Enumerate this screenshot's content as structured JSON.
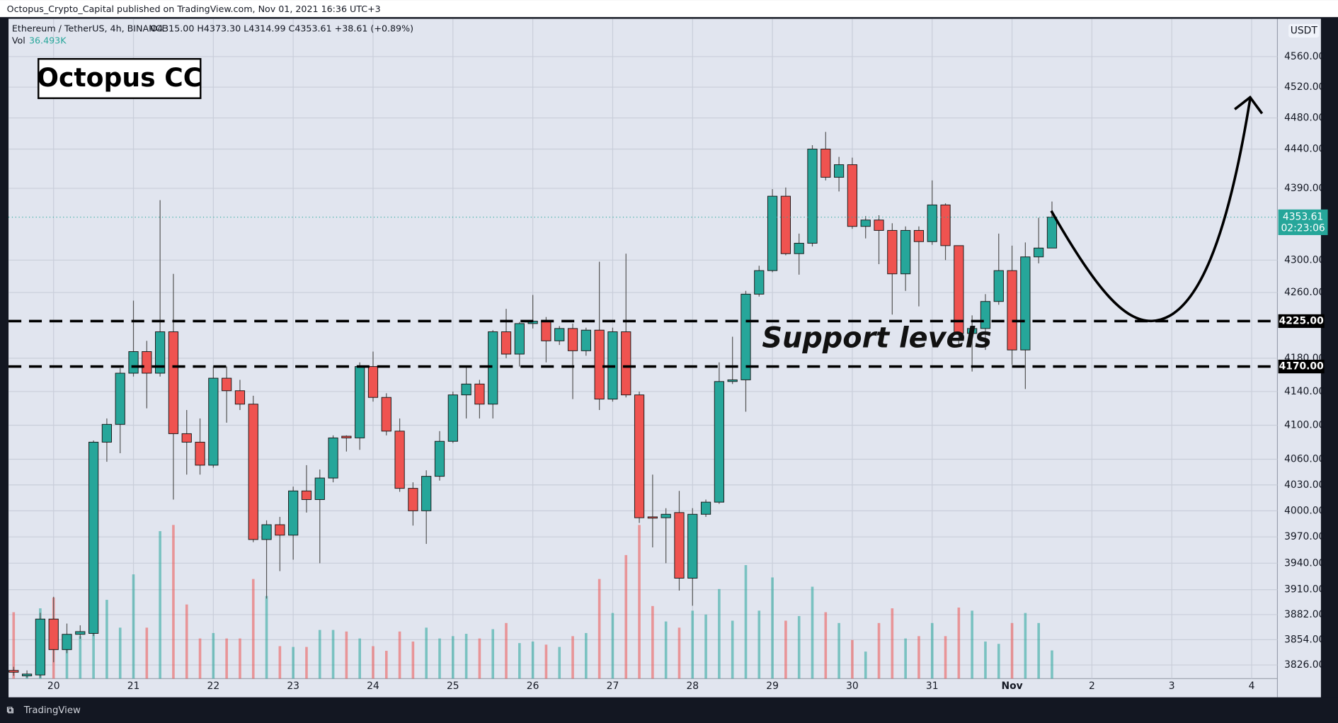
{
  "chart_data": {
    "type": "candlestick",
    "header": "Octopus_Crypto_Capital published on TradingView.com, Nov 01, 2021 16:36 UTC+3",
    "symbol": "Ethereum / TetherUS, 4h, BINANCE",
    "legend_values": "O4315.00 H4373.30 L4314.99 C4353.61 +38.61 (+0.89%)",
    "volume_name": "Vol",
    "volume_value_label": "36.493K",
    "currency": "USDT",
    "footer": "TradingView",
    "annotations": {
      "brand": "Octopus CC",
      "support": "Support levels"
    },
    "categories": [
      null,
      null,
      null,
      "20",
      null,
      null,
      null,
      null,
      null,
      "21",
      null,
      null,
      null,
      null,
      null,
      "22",
      null,
      null,
      null,
      null,
      null,
      "23",
      null,
      null,
      null,
      null,
      null,
      "24",
      null,
      null,
      null,
      null,
      null,
      "25",
      null,
      null,
      null,
      null,
      null,
      "26",
      null,
      null,
      null,
      null,
      null,
      "27",
      null,
      null,
      null,
      null,
      null,
      "28",
      null,
      null,
      null,
      null,
      null,
      "29",
      null,
      null,
      null,
      null,
      null,
      "30",
      null,
      null,
      null,
      null,
      null,
      "31",
      null,
      null,
      null,
      null,
      null,
      "Nov",
      null,
      null,
      null,
      null,
      null,
      "2",
      null,
      null,
      null,
      null,
      null,
      "3",
      null,
      null,
      null,
      null,
      null,
      "4",
      null
    ],
    "open": [
      3820,
      3814,
      3815,
      3877,
      3843,
      3860,
      3861,
      4080,
      4101,
      4162,
      4188,
      4162,
      4212,
      4090,
      4080,
      4053,
      4156,
      4141,
      4125,
      3967,
      3984,
      3972,
      4023,
      4013,
      4038,
      4087,
      4085,
      4170,
      4133,
      4093,
      4026,
      4000,
      4040,
      4081,
      4136,
      4149,
      4125,
      4212,
      4185,
      4222,
      4225,
      4201,
      4216,
      4189,
      4214,
      4131,
      4212,
      4136,
      3993,
      3992,
      3998,
      3923,
      3996,
      4010,
      4152,
      4154,
      4258,
      4287,
      4380,
      4308,
      4321,
      4440,
      4404,
      4420,
      4342,
      4350,
      4337,
      4283,
      4337,
      4323,
      4369,
      4318,
      4210,
      4216,
      4249,
      4287,
      4190,
      4304,
      4315.0,
      null,
      null,
      null,
      null,
      null,
      null,
      null,
      null,
      null,
      null,
      null,
      null,
      null,
      null,
      null,
      null
    ],
    "high": [
      3824,
      3820,
      3884,
      3902,
      3872,
      3870,
      4082,
      4108,
      4168,
      4250,
      4201,
      4375,
      4283,
      4118,
      4108,
      4170,
      4170,
      4154,
      4135,
      3989,
      3993,
      4028,
      4053,
      4048,
      4088,
      4088,
      4175,
      4188,
      4138,
      4108,
      4033,
      4047,
      4093,
      4140,
      4170,
      4154,
      4214,
      4240,
      4224,
      4257,
      4230,
      4219,
      4222,
      4217,
      4298,
      4217,
      4308,
      4140,
      4042,
      4003,
      4023,
      4003,
      4013,
      4175,
      4206,
      4262,
      4293,
      4389,
      4391,
      4333,
      4445,
      4462,
      4430,
      4429,
      4355,
      4356,
      4346,
      4342,
      4342,
      4400,
      4371,
      4318,
      4232,
      4258,
      4333,
      4318,
      4322,
      4353,
      4373.3,
      null,
      null,
      null,
      null,
      null,
      null,
      null,
      null,
      null,
      null,
      null,
      null,
      null,
      null,
      null,
      null
    ],
    "low": [
      3814,
      3812,
      3812,
      3829,
      3839,
      3855,
      3858,
      4057,
      4067,
      4158,
      4120,
      4158,
      4013,
      4042,
      4042,
      4050,
      4103,
      4118,
      3964,
      3900,
      3931,
      3944,
      3998,
      3940,
      4033,
      4069,
      4071,
      4128,
      4088,
      4022,
      3983,
      3962,
      4035,
      4079,
      4108,
      4108,
      4108,
      4180,
      4170,
      4216,
      4175,
      4196,
      4131,
      4183,
      4118,
      4128,
      4133,
      3986,
      3958,
      3940,
      3909,
      3892,
      3993,
      4008,
      4149,
      4116,
      4255,
      4285,
      4306,
      4282,
      4317,
      4400,
      4386,
      4339,
      4327,
      4295,
      4233,
      4262,
      4243,
      4319,
      4300,
      4197,
      4164,
      4190,
      4245,
      4172,
      4143,
      4296,
      4314.99,
      null,
      null,
      null,
      null,
      null,
      null,
      null,
      null,
      null,
      null,
      null,
      null,
      null,
      null,
      null,
      null
    ],
    "close": [
      3818,
      3816,
      3877,
      3843,
      3860,
      3863,
      4080,
      4101,
      4162,
      4188,
      4162,
      4212,
      4090,
      4080,
      4053,
      4156,
      4141,
      4125,
      3967,
      3984,
      3972,
      4023,
      4013,
      4038,
      4085,
      4085,
      4170,
      4133,
      4093,
      4026,
      4000,
      4040,
      4081,
      4136,
      4149,
      4125,
      4212,
      4185,
      4222,
      4225,
      4201,
      4216,
      4189,
      4214,
      4131,
      4212,
      4136,
      3992,
      3992,
      3996,
      3923,
      3996,
      4010,
      4152,
      4154,
      4258,
      4287,
      4380,
      4308,
      4321,
      4440,
      4404,
      4420,
      4342,
      4350,
      4337,
      4283,
      4337,
      4323,
      4369,
      4318,
      4210,
      4216,
      4249,
      4287,
      4190,
      4304,
      4315,
      4353.61,
      null,
      null,
      null,
      null,
      null,
      null,
      null,
      null,
      null,
      null,
      null,
      null,
      null,
      null,
      null,
      null
    ],
    "volume": [
      86,
      6,
      91,
      105,
      39,
      55,
      61,
      102,
      66,
      135,
      66,
      191,
      199,
      96,
      52,
      59,
      52,
      52,
      129,
      107,
      42,
      41,
      41,
      63,
      63,
      61,
      52,
      42,
      36,
      61,
      48,
      66,
      52,
      55,
      58,
      52,
      64,
      72,
      46,
      48,
      44,
      41,
      55,
      59,
      129,
      85,
      160,
      199,
      94,
      74,
      66,
      88,
      83,
      116,
      75,
      147,
      88,
      131,
      75,
      81,
      119,
      86,
      72,
      50,
      35,
      72,
      91,
      52,
      55,
      72,
      55,
      92,
      88,
      48,
      45,
      72,
      85,
      72,
      36.493,
      null,
      null,
      null,
      null,
      null,
      null,
      null,
      null,
      null,
      null,
      null,
      null,
      null,
      null,
      null,
      null
    ],
    "up_color": "#26a69a",
    "down_color": "#ef5350",
    "log_scale": true,
    "grid": true,
    "ylim": [
      3811,
      4610
    ],
    "yticks": [
      {
        "value": 4560,
        "label": "4560.00"
      },
      {
        "value": 4520,
        "label": "4520.00"
      },
      {
        "value": 4480,
        "label": "4480.00"
      },
      {
        "value": 4440,
        "label": "4440.00"
      },
      {
        "value": 4390,
        "label": "4390.00"
      },
      {
        "value": 4300,
        "label": "4300.00"
      },
      {
        "value": 4260,
        "label": "4260.00"
      },
      {
        "value": 4180,
        "label": "4180.00"
      },
      {
        "value": 4140,
        "label": "4140.00"
      },
      {
        "value": 4100,
        "label": "4100.00"
      },
      {
        "value": 4060,
        "label": "4060.00"
      },
      {
        "value": 4030,
        "label": "4030.00"
      },
      {
        "value": 4000,
        "label": "4000.00"
      },
      {
        "value": 3970,
        "label": "3970.00"
      },
      {
        "value": 3940,
        "label": "3940.00"
      },
      {
        "value": 3910,
        "label": "3910.00"
      },
      {
        "value": 3882,
        "label": "3882.00"
      },
      {
        "value": 3854,
        "label": "3854.00"
      },
      {
        "value": 3826,
        "label": "3826.00"
      }
    ],
    "hlines": [
      {
        "value": 4225,
        "label": "4225.00"
      },
      {
        "value": 4170,
        "label": "4170.00"
      }
    ],
    "last_price": {
      "value": 4353.61,
      "label": "4353.61",
      "countdown": "02:23:06",
      "color": "#26a69a"
    }
  }
}
